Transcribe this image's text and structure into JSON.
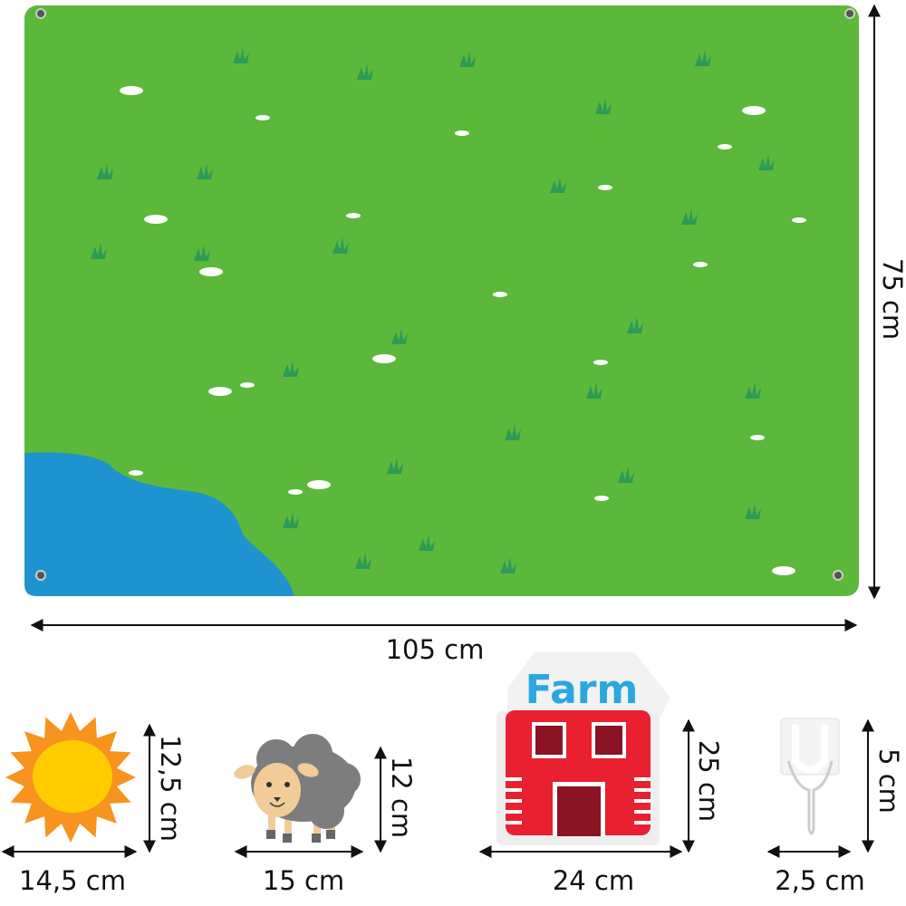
{
  "board": {
    "width_label": "105 cm",
    "height_label": "75 cm",
    "colors": {
      "grass": "#5cb83a",
      "pond": "#1f93cf",
      "tufts": "#2e9a5a",
      "flowers": "#ffffff"
    }
  },
  "pieces": [
    {
      "name": "sun",
      "height_label": "12,5 cm",
      "width_label": "14,5 cm"
    },
    {
      "name": "sheep",
      "height_label": "12 cm",
      "width_label": "15 cm"
    },
    {
      "name": "farm",
      "sign_text": "Farm",
      "height_label": "25 cm",
      "width_label": "24 cm"
    },
    {
      "name": "hook",
      "height_label": "5 cm",
      "width_label": "2,5 cm"
    }
  ]
}
